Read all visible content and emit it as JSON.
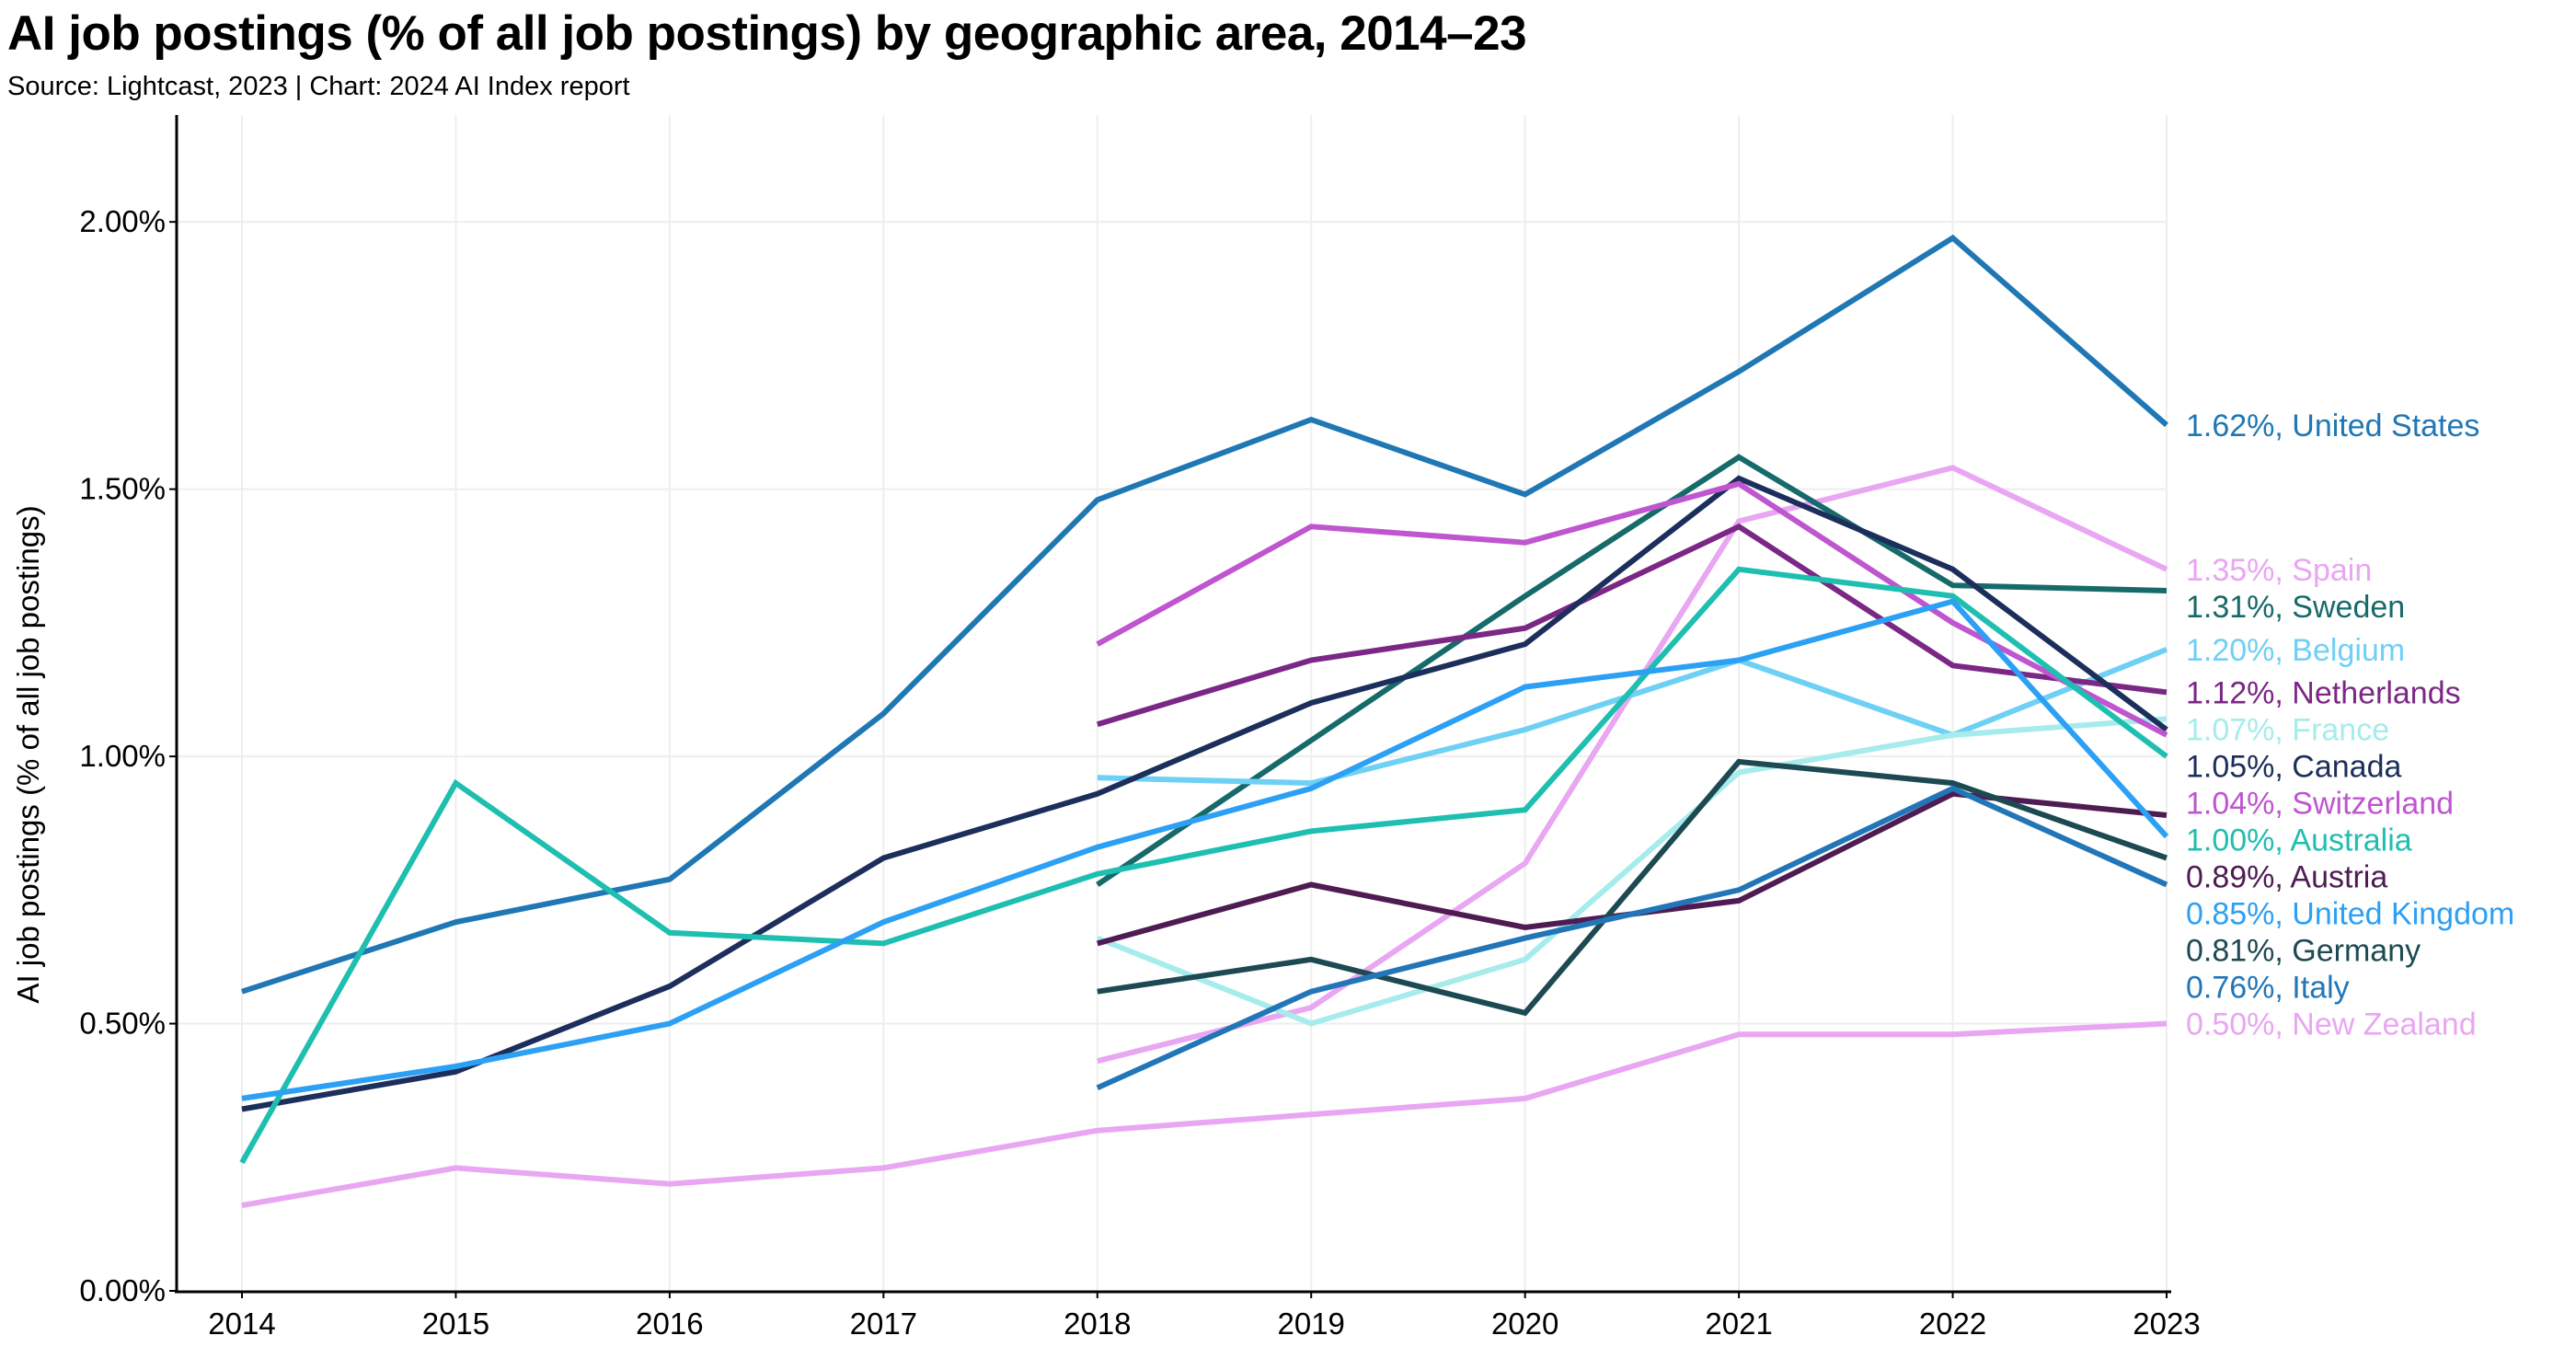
{
  "title": "AI job postings (% of all job postings) by geographic area, 2014–23",
  "subtitle": "Source: Lightcast, 2023 | Chart: 2024 AI Index report",
  "chart_data": {
    "type": "line",
    "xlabel": "",
    "ylabel": "AI job postings (% of all job postings)",
    "x": [
      2014,
      2015,
      2016,
      2017,
      2018,
      2019,
      2020,
      2021,
      2022,
      2023
    ],
    "xticks": [
      "2014",
      "2015",
      "2016",
      "2017",
      "2018",
      "2019",
      "2020",
      "2021",
      "2022",
      "2023"
    ],
    "ylim": [
      0,
      2.2
    ],
    "yticks": [
      {
        "value": 0,
        "label": "0.00%"
      },
      {
        "value": 0.5,
        "label": "0.50%"
      },
      {
        "value": 1.0,
        "label": "1.00%"
      },
      {
        "value": 1.5,
        "label": "1.50%"
      },
      {
        "value": 2.0,
        "label": "2.00%"
      }
    ],
    "grid": "vertical and horizontal light lines",
    "legend": "end-of-line labels",
    "series": [
      {
        "name": "United States",
        "label": "1.62%, United States",
        "color": "#1f77b4",
        "values": [
          0.56,
          0.69,
          0.77,
          1.08,
          1.48,
          1.63,
          1.49,
          1.72,
          1.97,
          1.62
        ]
      },
      {
        "name": "Spain",
        "label": "1.35%, Spain",
        "color": "#e9a6f2",
        "values": [
          null,
          null,
          null,
          null,
          0.43,
          0.53,
          0.8,
          1.44,
          1.54,
          1.35
        ]
      },
      {
        "name": "Sweden",
        "label": "1.31%, Sweden",
        "color": "#176a6a",
        "values": [
          null,
          null,
          null,
          null,
          0.76,
          1.03,
          1.3,
          1.56,
          1.32,
          1.31
        ]
      },
      {
        "name": "Belgium",
        "label": "1.20%, Belgium",
        "color": "#6fd0f5",
        "values": [
          null,
          null,
          null,
          null,
          0.96,
          0.95,
          1.05,
          1.18,
          1.04,
          1.2
        ]
      },
      {
        "name": "Netherlands",
        "label": "1.12%, Netherlands",
        "color": "#7b2785",
        "values": [
          null,
          null,
          null,
          null,
          1.06,
          1.18,
          1.24,
          1.43,
          1.17,
          1.12
        ]
      },
      {
        "name": "France",
        "label": "1.07%, France",
        "color": "#a6ecec",
        "values": [
          null,
          null,
          null,
          null,
          0.66,
          0.5,
          0.62,
          0.97,
          1.04,
          1.07
        ]
      },
      {
        "name": "Canada",
        "label": "1.05%, Canada",
        "color": "#1c2e5b",
        "values": [
          0.34,
          0.41,
          0.57,
          0.81,
          0.93,
          1.1,
          1.21,
          1.52,
          1.35,
          1.05
        ]
      },
      {
        "name": "Switzerland",
        "label": "1.04%, Switzerland",
        "color": "#bf55cf",
        "values": [
          null,
          null,
          null,
          null,
          1.21,
          1.43,
          1.4,
          1.51,
          1.25,
          1.04
        ]
      },
      {
        "name": "Australia",
        "label": "1.00%, Australia",
        "color": "#1ebfb0",
        "values": [
          0.24,
          0.95,
          0.67,
          0.65,
          0.78,
          0.86,
          0.9,
          1.35,
          1.3,
          1.0
        ]
      },
      {
        "name": "Austria",
        "label": "0.89%, Austria",
        "color": "#4e1c52",
        "values": [
          null,
          null,
          null,
          null,
          0.65,
          0.76,
          0.68,
          0.73,
          0.93,
          0.89
        ]
      },
      {
        "name": "United Kingdom",
        "label": "0.85%, United Kingdom",
        "color": "#2ca0f4",
        "values": [
          0.36,
          0.42,
          0.5,
          0.69,
          0.83,
          0.94,
          1.13,
          1.18,
          1.29,
          0.85
        ]
      },
      {
        "name": "Germany",
        "label": "0.81%, Germany",
        "color": "#1d4a52",
        "values": [
          null,
          null,
          null,
          null,
          0.56,
          0.62,
          0.52,
          0.99,
          0.95,
          0.81
        ]
      },
      {
        "name": "Italy",
        "label": "0.76%, Italy",
        "color": "#2276b8",
        "values": [
          null,
          null,
          null,
          null,
          0.38,
          0.56,
          0.66,
          0.75,
          0.94,
          0.76
        ]
      },
      {
        "name": "New Zealand",
        "label": "0.50%, New Zealand",
        "color": "#e9a6f2",
        "values": [
          0.16,
          0.23,
          0.2,
          0.23,
          0.3,
          0.33,
          0.36,
          0.48,
          0.48,
          0.5
        ]
      }
    ]
  }
}
